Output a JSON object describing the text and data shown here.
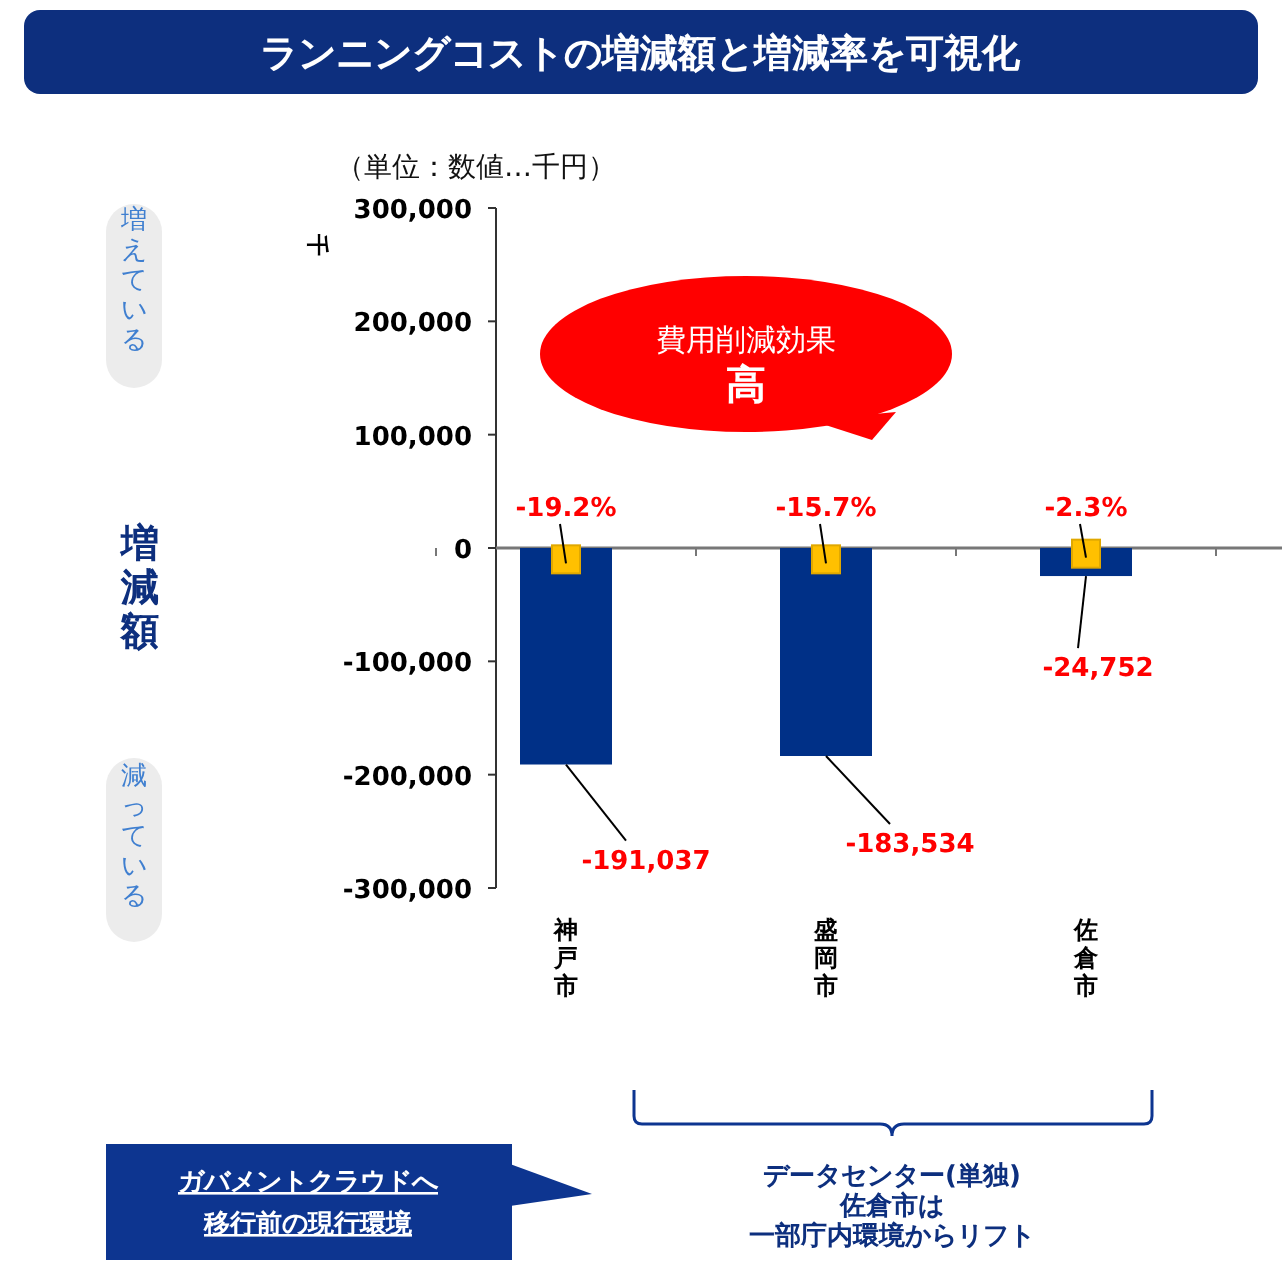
{
  "chart_data": {
    "type": "bar",
    "title": "ランニングコストの増減額と増減率を可視化",
    "subtitle": "（単位：数値…千円）",
    "ylabel": "増減額",
    "categories": [
      "神戸市",
      "盛岡市",
      "佐倉市"
    ],
    "values": [
      -191037,
      -183534,
      -24752
    ],
    "color": "#003087",
    "value_labels": [
      "-191,037",
      "-183,534",
      "-24,752"
    ],
    "ylim": [
      -300000,
      300000
    ],
    "yticks": [
      {
        "value": -300000,
        "label": "-300,000"
      },
      {
        "value": -200000,
        "label": "-200,000"
      },
      {
        "value": -100000,
        "label": "-100,000"
      },
      0,
      {
        "value": 100000,
        "label": "100,000"
      },
      {
        "value": 200000,
        "label": "200,000"
      },
      {
        "value": 300000,
        "label": "300,000"
      }
    ],
    "annotations": [
      "増えている",
      "減っている",
      "費用削減効果",
      "高",
      "千",
      "ガバメントクラウドへ",
      "移行前の現行環境",
      "データセンター(単独)",
      "佐倉市は",
      "一部庁内環境からリフト",
      {
        "text": "-19.2%",
        "x": "神戸市",
        "y": -10000
      },
      {
        "text": "-15.7%",
        "x": "盛岡市",
        "y": -10000
      },
      {
        "text": "-2.3%",
        "x": "佐倉市",
        "y": -5000
      }
    ]
  }
}
